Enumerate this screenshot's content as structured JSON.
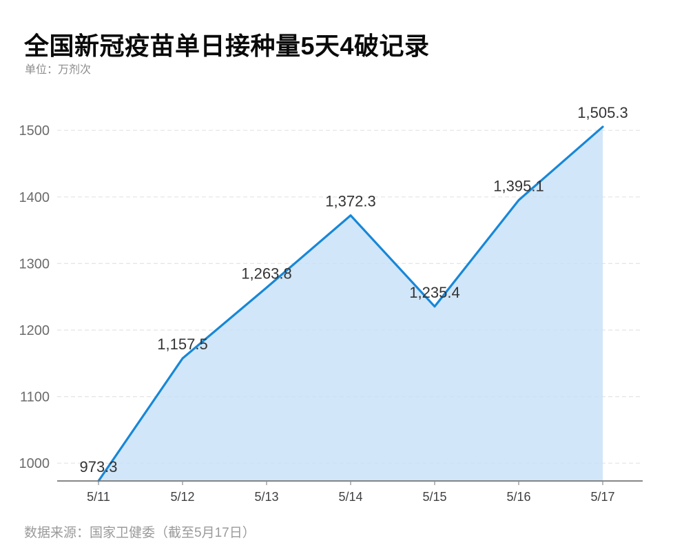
{
  "page": {
    "background": "#ffffff"
  },
  "header": {
    "title": "全国新冠疫苗单日接种量5天4破记录",
    "unit_label": "单位：万剂次"
  },
  "footer": {
    "source": "数据来源：国家卫健委（截至5月17日）"
  },
  "chart_data": {
    "type": "area",
    "title": "全国新冠疫苗单日接种量5天4破记录",
    "unit": "万剂次",
    "categories": [
      "5/11",
      "5/12",
      "5/13",
      "5/14",
      "5/15",
      "5/16",
      "5/17"
    ],
    "values": [
      973.3,
      1157.5,
      1263.8,
      1372.3,
      1235.4,
      1395.1,
      1505.3
    ],
    "point_labels": [
      "973.3",
      "1,157.5",
      "1,263.8",
      "1,372.3",
      "1,235.4",
      "1,395.1",
      "1,505.3"
    ],
    "y_ticks": [
      1000,
      1100,
      1200,
      1300,
      1400,
      1500
    ],
    "y_tick_labels": [
      "1000",
      "1100",
      "1200",
      "1300",
      "1400",
      "1500"
    ],
    "ylim": [
      973.3,
      1552
    ],
    "xlabel": "",
    "ylabel": "万剂次",
    "grid": "horizontal-dashed",
    "legend_position": "none",
    "colors": {
      "line": "#1787d8",
      "fill": "#c7e1f7",
      "grid": "#e4e4e4",
      "axis": "#757575",
      "tick": "#8a8a8a",
      "point_label": "#333333",
      "x_tick_label": "#404040",
      "y_tick_label": "#6b6b6b"
    }
  }
}
